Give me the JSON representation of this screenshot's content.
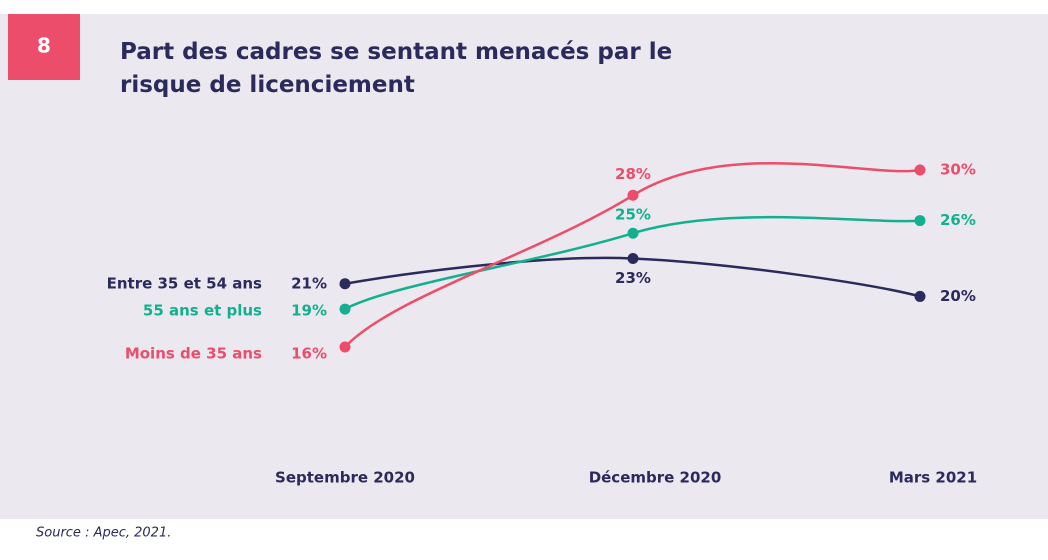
{
  "badge": "8",
  "chart_data": {
    "type": "line",
    "title": "Part des cadres se sentant menacés par le risque de licenciement",
    "categories": [
      "Septembre 2020",
      "Décembre 2020",
      "Mars 2021"
    ],
    "series": [
      {
        "name": "Entre 35 et 54 ans",
        "color": "#2b2a5c",
        "values": [
          21,
          23,
          20
        ],
        "value_labels": [
          "21%",
          "23%",
          "20%"
        ]
      },
      {
        "name": "55 ans et plus",
        "color": "#13b090",
        "values": [
          19,
          25,
          26
        ],
        "value_labels": [
          "19%",
          "25%",
          "26%"
        ]
      },
      {
        "name": "Moins de 35 ans",
        "color": "#ec4d6a",
        "values": [
          16,
          28,
          30
        ],
        "value_labels": [
          "16%",
          "28%",
          "30%"
        ]
      }
    ],
    "source": "Source : Apec, 2021."
  }
}
